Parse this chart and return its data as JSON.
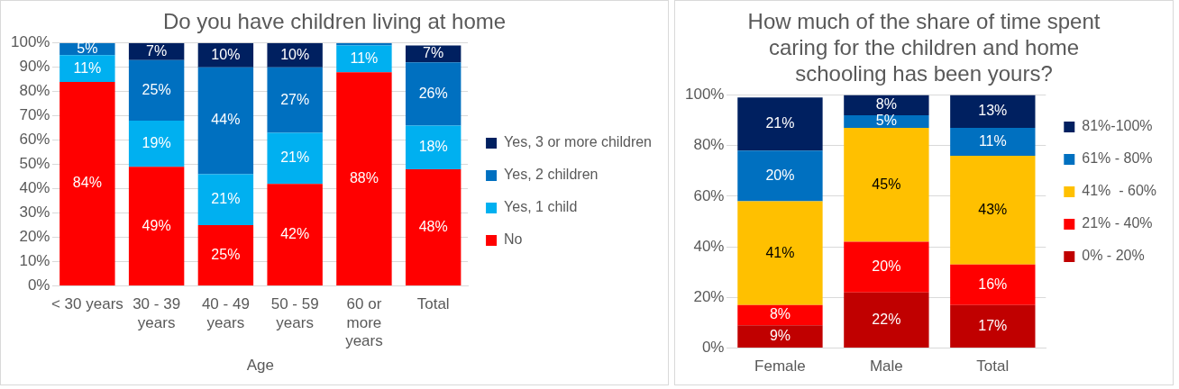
{
  "chart_data": [
    {
      "type": "bar",
      "title": "Do you have children living at home",
      "xlabel": "Age",
      "categories": [
        "< 30 years",
        "30 - 39 years",
        "40 - 49 years",
        "50 - 59 years",
        "60 or more years",
        "Total"
      ],
      "series": [
        {
          "name": "No",
          "color": "#ff0000",
          "values": [
            84,
            49,
            25,
            42,
            88,
            48
          ],
          "value_labels": [
            "84%",
            "49%",
            "25%",
            "42%",
            "88%",
            "48%"
          ]
        },
        {
          "name": "Yes, 1 child",
          "color": "#00b0f0",
          "values": [
            11,
            19,
            21,
            21,
            11,
            18
          ],
          "value_labels": [
            "11%",
            "19%",
            "21%",
            "21%",
            "11%",
            "18%"
          ]
        },
        {
          "name": "Yes, 2 children",
          "color": "#0070c0",
          "values": [
            5,
            25,
            44,
            27,
            1,
            26
          ],
          "value_labels": [
            "5%",
            "25%",
            "44%",
            "27%",
            null,
            "26%"
          ]
        },
        {
          "name": "Yes, 3 or more children",
          "color": "#002060",
          "values": [
            0,
            7,
            10,
            10,
            0,
            7
          ],
          "value_labels": [
            null,
            "7%",
            "10%",
            "10%",
            null,
            "7%"
          ]
        }
      ],
      "stacked": true,
      "ylim": [
        0,
        100
      ],
      "yticks": [
        {
          "value": 0,
          "label": "0%"
        },
        {
          "value": 10,
          "label": "10%"
        },
        {
          "value": 20,
          "label": "20%"
        },
        {
          "value": 30,
          "label": "30%"
        },
        {
          "value": 40,
          "label": "40%"
        },
        {
          "value": 50,
          "label": "50%"
        },
        {
          "value": 60,
          "label": "60%"
        },
        {
          "value": 70,
          "label": "70%"
        },
        {
          "value": 80,
          "label": "80%"
        },
        {
          "value": 90,
          "label": "90%"
        },
        {
          "value": 100,
          "label": "100%"
        }
      ],
      "grid": "y",
      "legend": "right"
    },
    {
      "type": "bar",
      "title": "How much of the share of time spent caring for the children and home schooling has been yours?",
      "categories": [
        "Female",
        "Male",
        "Total"
      ],
      "series": [
        {
          "name": "0% - 20%",
          "color": "#c00000",
          "values": [
            9,
            22,
            17
          ],
          "value_labels": [
            "9%",
            "22%",
            "17%"
          ]
        },
        {
          "name": "21% - 40%",
          "color": "#ff0000",
          "values": [
            8,
            20,
            16
          ],
          "value_labels": [
            "8%",
            "20%",
            "16%"
          ]
        },
        {
          "name": "41%  - 60%",
          "color": "#ffc000",
          "values": [
            41,
            45,
            43
          ],
          "value_labels": [
            "41%",
            "45%",
            "43%"
          ]
        },
        {
          "name": "61% - 80%",
          "color": "#0070c0",
          "values": [
            20,
            5,
            11
          ],
          "value_labels": [
            "20%",
            "5%",
            "11%"
          ]
        },
        {
          "name": "81%-100%",
          "color": "#002060",
          "values": [
            21,
            8,
            13
          ],
          "value_labels": [
            "21%",
            "8%",
            "13%"
          ]
        }
      ],
      "stacked": true,
      "ylim": [
        0,
        100
      ],
      "yticks": [
        {
          "value": 0,
          "label": "0%"
        },
        {
          "value": 20,
          "label": "20%"
        },
        {
          "value": 40,
          "label": "40%"
        },
        {
          "value": 60,
          "label": "60%"
        },
        {
          "value": 80,
          "label": "80%"
        },
        {
          "value": 100,
          "label": "100%"
        }
      ],
      "grid": "y",
      "legend": "right"
    }
  ]
}
